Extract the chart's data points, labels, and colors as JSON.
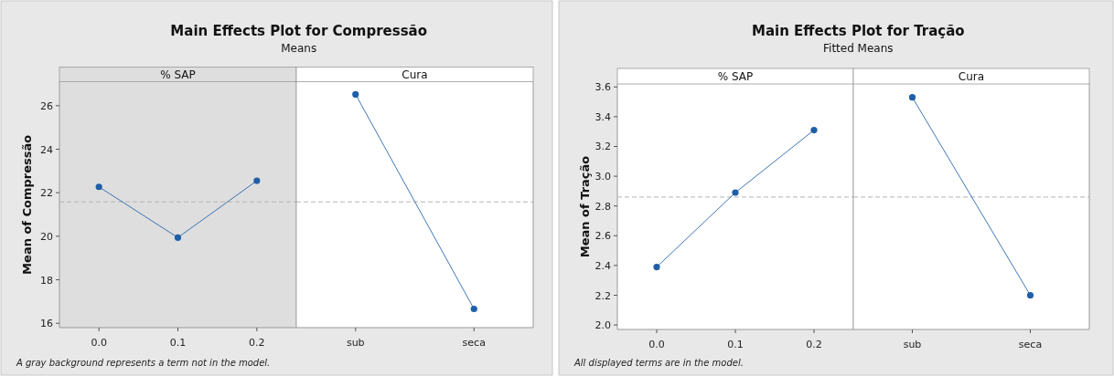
{
  "chart_data": [
    {
      "type": "line",
      "title": "Main Effects Plot for Compressão",
      "subtitle": "Means",
      "ylabel": "Mean of Compressão",
      "xlabel": "% SAP",
      "annotations": [
        "A gray background represents a term not in the model."
      ],
      "categories": [
        "0.0",
        "0.1",
        "0.2"
      ],
      "series": [
        {
          "color": "#1f5fa8",
          "values": [
            22.27,
            19.94,
            22.55
          ]
        }
      ],
      "ylim": [
        15.8,
        27.1
      ],
      "yticks": [
        16,
        18,
        20,
        22,
        24,
        26
      ],
      "ref_lines": [
        {
          "axis": "y",
          "value": 21.58,
          "color": "#b4b4b4",
          "line_style": "dashed"
        }
      ],
      "bands": [
        {
          "axis": "y",
          "from": 15.8,
          "to": 27.1,
          "color": "#dedede"
        }
      ],
      "marker": "circle",
      "grid": false
    },
    {
      "type": "line",
      "xlabel": "Cura",
      "categories": [
        "sub",
        "seca"
      ],
      "series": [
        {
          "color": "#1f5fa8",
          "values": [
            26.52,
            16.66
          ]
        }
      ],
      "ylim": [
        15.8,
        27.1
      ],
      "ref_lines": [
        {
          "axis": "y",
          "value": 21.58,
          "color": "#b4b4b4",
          "line_style": "dashed"
        }
      ],
      "marker": "circle",
      "grid": false,
      "tick_labels": "x"
    },
    {
      "type": "line",
      "title": "Main Effects Plot for Tração",
      "subtitle": "Fitted Means",
      "ylabel": "Mean of Tração",
      "xlabel": "% SAP",
      "annotations": [
        "All displayed terms are in the model."
      ],
      "categories": [
        "0.0",
        "0.1",
        "0.2"
      ],
      "series": [
        {
          "color": "#1f5fa8",
          "values": [
            2.39,
            2.89,
            3.31
          ]
        }
      ],
      "ylim": [
        1.97,
        3.62
      ],
      "yticks": [
        {
          "value": 2,
          "label": "2.0"
        },
        2.2,
        2.4,
        2.6,
        2.8,
        {
          "value": 3,
          "label": "3.0"
        },
        3.2,
        3.4,
        3.6
      ],
      "ref_lines": [
        {
          "axis": "y",
          "value": 2.86,
          "color": "#b4b4b4",
          "line_style": "dashed"
        }
      ],
      "marker": "circle",
      "grid": false
    },
    {
      "type": "line",
      "xlabel": "Cura",
      "categories": [
        "sub",
        "seca"
      ],
      "series": [
        {
          "color": "#1f5fa8",
          "values": [
            3.53,
            2.2
          ]
        }
      ],
      "ylim": [
        1.97,
        3.62
      ],
      "ref_lines": [
        {
          "axis": "y",
          "value": 2.86,
          "color": "#b4b4b4",
          "line_style": "dashed"
        }
      ],
      "marker": "circle",
      "grid": false,
      "tick_labels": "x"
    }
  ]
}
